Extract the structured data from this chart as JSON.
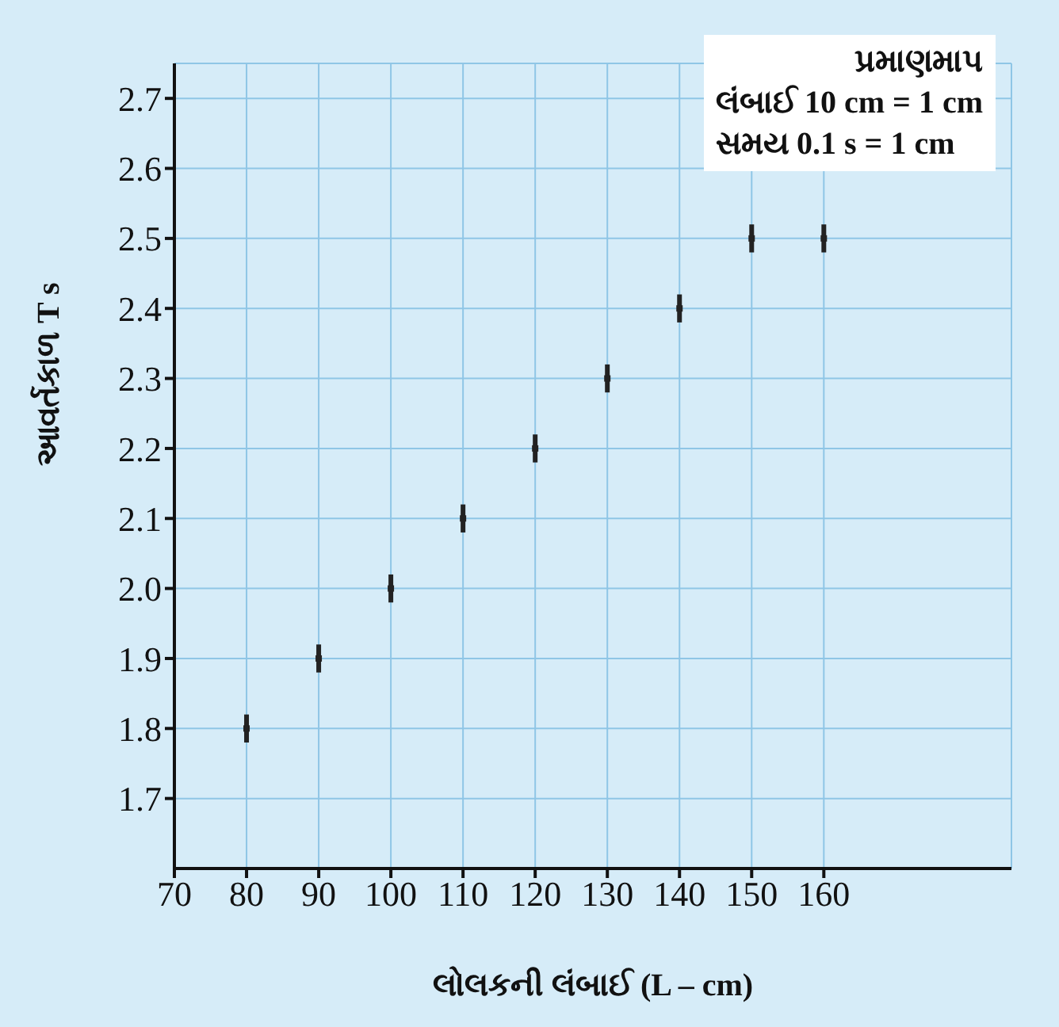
{
  "chart_data": {
    "type": "scatter",
    "xlabel": "લોલકની લંબાઈ (L – cm)",
    "ylabel": "આવર્તકાળ T s",
    "x": [
      80,
      90,
      100,
      110,
      120,
      130,
      140,
      150,
      160
    ],
    "series": [
      {
        "color": "#222222",
        "values": [
          1.8,
          1.9,
          2.0,
          2.1,
          2.2,
          2.3,
          2.4,
          2.5,
          2.5
        ],
        "errors": [
          0.02,
          0.02,
          0.02,
          0.02,
          0.02,
          0.02,
          0.02,
          0.02,
          0.02
        ]
      }
    ],
    "marker": "square",
    "xlim": [
      70,
      186
    ],
    "xticks": [
      70,
      80,
      90,
      100,
      110,
      120,
      130,
      140,
      150,
      160
    ],
    "ylim": [
      1.6,
      2.75
    ],
    "yticks": [
      1.7,
      1.8,
      1.9,
      {
        "value": 2,
        "label": "2.0"
      },
      2.1,
      2.2,
      2.3,
      2.4,
      2.5,
      2.6,
      2.7
    ],
    "grid": true,
    "legend": false,
    "annotations": [
      "પ્રમાણમાપ",
      "લંબાઈ 10 cm = 1 cm",
      "સમય 0.1 s = 1 cm"
    ]
  }
}
